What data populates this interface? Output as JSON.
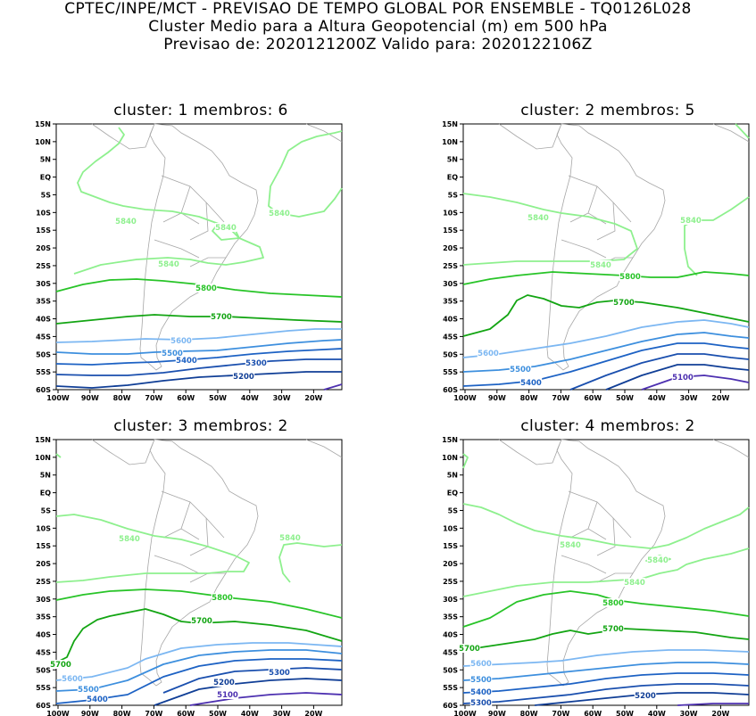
{
  "header": {
    "line1": "CPTEC/INPE/MCT - PREVISAO DE TEMPO GLOBAL POR ENSEMBLE - TQ0126L028",
    "line2": "Cluster Medio para a Altura Geopotencial (m) em 500 hPa",
    "line3": "Previsao de: 2020121200Z    Valido para: 2020122106Z"
  },
  "axes": {
    "lat_labels": [
      "15N",
      "10N",
      "5N",
      "EQ",
      "5S",
      "10S",
      "15S",
      "20S",
      "25S",
      "30S",
      "35S",
      "40S",
      "45S",
      "50S",
      "55S",
      "60S"
    ],
    "lon_labels": [
      "100W",
      "90W",
      "80W",
      "70W",
      "60W",
      "50W",
      "40W",
      "30W",
      "20W"
    ]
  },
  "colors": {
    "c5840": "#8ef08e",
    "c5800": "#28c428",
    "c5700": "#13a513",
    "c5600": "#7cb7f2",
    "c5500": "#3d8fde",
    "c5400": "#1d62c4",
    "c5300": "#1a4fae",
    "c5200": "#103e96",
    "c5100": "#4d30b0",
    "coast": "#a6a6a6"
  },
  "panels": [
    {
      "title": "cluster: 1   membros: 6",
      "labels": [
        "5840",
        "5840",
        "5840",
        "5840",
        "5800",
        "5700",
        "5600",
        "5500",
        "5400",
        "5300",
        "5200"
      ]
    },
    {
      "title": "cluster: 2   membros: 5",
      "labels": [
        "5840",
        "5840",
        "5840",
        "5800",
        "5700",
        "5600",
        "5500",
        "5400",
        "5100"
      ]
    },
    {
      "title": "cluster: 3   membros: 2",
      "labels": [
        "5840",
        "5840",
        "5800",
        "5700",
        "5700",
        "5600",
        "5500",
        "5400",
        "5300",
        "5200",
        "5100"
      ]
    },
    {
      "title": "cluster: 4   membros: 2",
      "labels": [
        "5840",
        "5840",
        "5840",
        "5800",
        "5700",
        "5700",
        "5600",
        "5500",
        "5400",
        "5300",
        "5200"
      ]
    }
  ]
}
